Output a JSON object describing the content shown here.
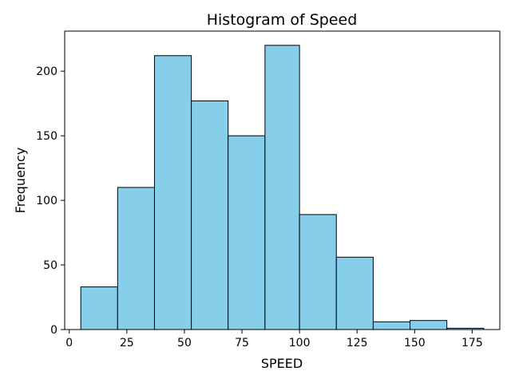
{
  "chart_data": {
    "type": "bar",
    "title": "Histogram of Speed",
    "xlabel": "SPEED",
    "ylabel": "Frequency",
    "bins": [
      {
        "start": 5,
        "end": 21,
        "value": 33
      },
      {
        "start": 21,
        "end": 37,
        "value": 110
      },
      {
        "start": 37,
        "end": 53,
        "value": 212
      },
      {
        "start": 53,
        "end": 69,
        "value": 177
      },
      {
        "start": 69,
        "end": 85,
        "value": 150
      },
      {
        "start": 85,
        "end": 100,
        "value": 220
      },
      {
        "start": 100,
        "end": 116,
        "value": 89
      },
      {
        "start": 116,
        "end": 132,
        "value": 56
      },
      {
        "start": 132,
        "end": 148,
        "value": 6
      },
      {
        "start": 148,
        "end": 164,
        "value": 7
      },
      {
        "start": 164,
        "end": 180,
        "value": 1
      }
    ],
    "xlim": [
      -2,
      187
    ],
    "ylim": [
      0,
      231
    ],
    "xticks": [
      0,
      25,
      50,
      75,
      100,
      125,
      150,
      175
    ],
    "yticks": [
      0,
      50,
      100,
      150,
      200
    ],
    "bar_color": "#87ceeb",
    "edge_color": "#000000",
    "grid": false,
    "legend": "none"
  }
}
